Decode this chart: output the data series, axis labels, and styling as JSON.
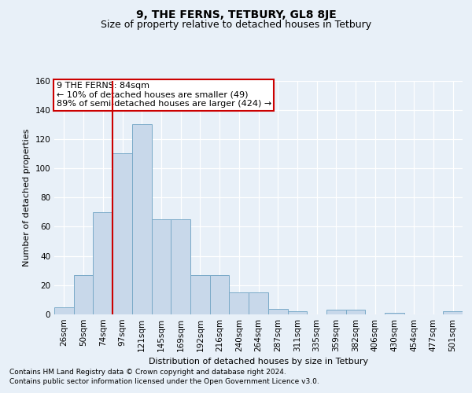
{
  "title": "9, THE FERNS, TETBURY, GL8 8JE",
  "subtitle": "Size of property relative to detached houses in Tetbury",
  "xlabel": "Distribution of detached houses by size in Tetbury",
  "ylabel": "Number of detached properties",
  "bin_labels": [
    "26sqm",
    "50sqm",
    "74sqm",
    "97sqm",
    "121sqm",
    "145sqm",
    "169sqm",
    "192sqm",
    "216sqm",
    "240sqm",
    "264sqm",
    "287sqm",
    "311sqm",
    "335sqm",
    "359sqm",
    "382sqm",
    "406sqm",
    "430sqm",
    "454sqm",
    "477sqm",
    "501sqm"
  ],
  "bar_heights": [
    5,
    27,
    70,
    110,
    130,
    65,
    65,
    27,
    27,
    15,
    15,
    4,
    2,
    0,
    3,
    3,
    0,
    1,
    0,
    0,
    2
  ],
  "bar_color": "#c8d8ea",
  "bar_edge_color": "#7aaac8",
  "vline_color": "#cc0000",
  "vline_pos": 2.5,
  "ylim": [
    0,
    160
  ],
  "yticks": [
    0,
    20,
    40,
    60,
    80,
    100,
    120,
    140,
    160
  ],
  "annotation_line1": "9 THE FERNS: 84sqm",
  "annotation_line2": "← 10% of detached houses are smaller (49)",
  "annotation_line3": "89% of semi-detached houses are larger (424) →",
  "annotation_box_color": "#ffffff",
  "annotation_box_edge_color": "#cc0000",
  "footer_line1": "Contains HM Land Registry data © Crown copyright and database right 2024.",
  "footer_line2": "Contains public sector information licensed under the Open Government Licence v3.0.",
  "background_color": "#e8f0f8",
  "grid_color": "#ffffff",
  "title_fontsize": 10,
  "subtitle_fontsize": 9,
  "axis_label_fontsize": 8,
  "tick_fontsize": 7.5,
  "annotation_fontsize": 8,
  "footer_fontsize": 6.5
}
